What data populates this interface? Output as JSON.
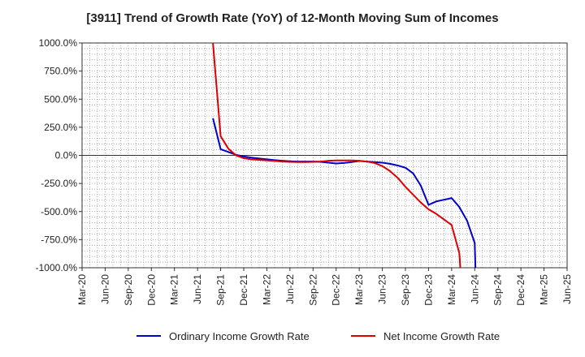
{
  "chart_data": {
    "type": "line",
    "title": "[3911]  Trend of Growth Rate (YoY) of 12-Month Moving Sum of Incomes",
    "xlabel": "",
    "ylabel": "",
    "x_tick_labels": [
      "Mar-20",
      "Jun-20",
      "Sep-20",
      "Dec-20",
      "Mar-21",
      "Jun-21",
      "Sep-21",
      "Dec-21",
      "Mar-22",
      "Jun-22",
      "Sep-22",
      "Dec-22",
      "Mar-23",
      "Jun-23",
      "Sep-23",
      "Dec-23",
      "Mar-24",
      "Jun-24",
      "Sep-24",
      "Dec-24",
      "Mar-25",
      "Jun-25"
    ],
    "y_tick_labels": [
      "1000.0%",
      "750.0%",
      "500.0%",
      "250.0%",
      "0.0%",
      "-250.0%",
      "-500.0%",
      "-750.0%",
      "-1000.0%"
    ],
    "ylim": [
      -1000,
      1000
    ],
    "grid": true,
    "legend_position": "bottom",
    "series": [
      {
        "name": "Ordinary Income Growth Rate",
        "color": "#0000cc",
        "x": [
          "Aug-21",
          "Sep-21",
          "Oct-21",
          "Nov-21",
          "Dec-21",
          "Jan-22",
          "Feb-22",
          "Mar-22",
          "Apr-22",
          "May-22",
          "Jun-22",
          "Jul-22",
          "Aug-22",
          "Sep-22",
          "Oct-22",
          "Nov-22",
          "Dec-22",
          "Jan-23",
          "Feb-23",
          "Mar-23",
          "Apr-23",
          "May-23",
          "Jun-23",
          "Jul-23",
          "Aug-23",
          "Sep-23",
          "Oct-23",
          "Nov-23",
          "Dec-23",
          "Jan-24",
          "Feb-24",
          "Mar-24",
          "Apr-24",
          "May-24",
          "Jun-24"
        ],
        "values": [
          330,
          55,
          30,
          5,
          -10,
          -20,
          -28,
          -35,
          -42,
          -48,
          -52,
          -55,
          -55,
          -55,
          -58,
          -65,
          -72,
          -68,
          -60,
          -50,
          -55,
          -60,
          -65,
          -75,
          -90,
          -110,
          -160,
          -270,
          -440,
          -410,
          -395,
          -380,
          -460,
          -580,
          -780
        ]
      },
      {
        "name": "Net Income Growth Rate",
        "color": "#dd0000",
        "x": [
          "Aug-21",
          "Sep-21",
          "Oct-21",
          "Nov-21",
          "Dec-21",
          "Jan-22",
          "Feb-22",
          "Mar-22",
          "Apr-22",
          "May-22",
          "Jun-22",
          "Jul-22",
          "Aug-22",
          "Sep-22",
          "Oct-22",
          "Nov-22",
          "Dec-22",
          "Jan-23",
          "Feb-23",
          "Mar-23",
          "Apr-23",
          "May-23",
          "Jun-23",
          "Jul-23",
          "Aug-23",
          "Sep-23",
          "Oct-23",
          "Nov-23",
          "Dec-23",
          "Jan-24",
          "Feb-24",
          "Mar-24",
          "Apr-24"
        ],
        "values": [
          1000,
          170,
          60,
          0,
          -25,
          -35,
          -40,
          -45,
          -50,
          -55,
          -58,
          -60,
          -60,
          -58,
          -55,
          -48,
          -45,
          -45,
          -45,
          -48,
          -55,
          -68,
          -95,
          -140,
          -200,
          -280,
          -350,
          -420,
          -480,
          -520,
          -570,
          -620,
          -870
        ],
        "note": "Line continues below the lower axis limit (-1000.0%) after Apr-24."
      }
    ]
  }
}
